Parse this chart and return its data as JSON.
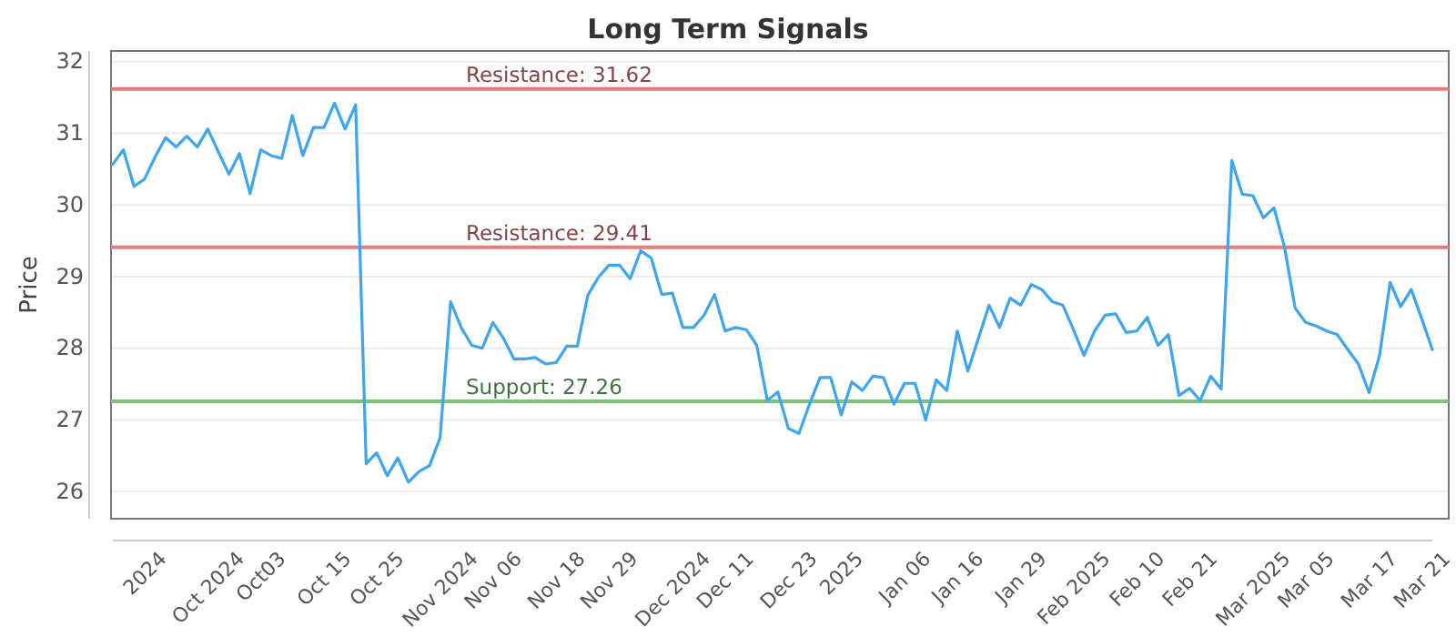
{
  "chart_data": {
    "type": "line",
    "title": "Long Term Signals",
    "ylabel": "Price",
    "categories": [
      null,
      null,
      null,
      "2024",
      null,
      null,
      null,
      null,
      null,
      "Oct 2024",
      null,
      null,
      null,
      null,
      "Oct03",
      null,
      null,
      null,
      null,
      null,
      "Oct 15",
      null,
      null,
      null,
      null,
      "Oct 25",
      null,
      null,
      null,
      null,
      null,
      "Nov 2024",
      null,
      null,
      null,
      null,
      "Nov 06",
      null,
      null,
      null,
      null,
      null,
      "Nov 18",
      null,
      null,
      null,
      null,
      "Nov 29",
      null,
      null,
      null,
      null,
      null,
      "Dec 2024",
      null,
      null,
      null,
      null,
      "Dec 11",
      null,
      null,
      null,
      null,
      null,
      "Dec 23",
      null,
      null,
      null,
      null,
      "2025",
      null,
      null,
      null,
      null,
      null,
      "Jan 06",
      null,
      null,
      null,
      null,
      "Jan 16",
      null,
      null,
      null,
      null,
      null,
      "Jan 29",
      null,
      null,
      null,
      null,
      "Feb 2025",
      null,
      null,
      null,
      null,
      null,
      "Feb 10",
      null,
      null,
      null,
      null,
      "Feb 21",
      null,
      null,
      null,
      null,
      null,
      "Mar 2025",
      null,
      null,
      null,
      null,
      "Mar 05",
      null,
      null,
      null,
      null,
      null,
      "Mar 17",
      null,
      null,
      null,
      null,
      "Mar 21",
      null
    ],
    "series": [
      {
        "color": "#3ea5ee",
        "values": [
          30.57,
          30.77,
          30.26,
          30.36,
          30.67,
          30.94,
          30.81,
          30.96,
          30.81,
          31.06,
          30.74,
          30.43,
          30.72,
          30.16,
          30.77,
          30.69,
          30.65,
          31.25,
          30.69,
          31.08,
          31.08,
          31.42,
          31.06,
          31.4,
          26.39,
          26.54,
          26.22,
          26.47,
          26.13,
          26.28,
          26.36,
          26.75,
          28.65,
          28.29,
          28.04,
          28.0,
          28.36,
          28.14,
          27.85,
          27.85,
          27.87,
          27.78,
          27.8,
          28.03,
          28.03,
          28.74,
          28.99,
          29.16,
          29.16,
          28.97,
          29.36,
          29.26,
          28.75,
          28.77,
          28.29,
          28.29,
          28.46,
          28.75,
          28.24,
          28.29,
          28.26,
          28.04,
          27.27,
          27.39,
          26.88,
          26.81,
          27.22,
          27.59,
          27.59,
          27.07,
          27.53,
          27.41,
          27.61,
          27.59,
          27.22,
          27.51,
          27.51,
          27.0,
          27.56,
          27.41,
          28.24,
          27.68,
          28.14,
          28.6,
          28.29,
          28.7,
          28.6,
          28.89,
          28.82,
          28.65,
          28.6,
          28.26,
          27.9,
          28.24,
          28.46,
          28.48,
          28.22,
          28.24,
          28.43,
          28.04,
          28.19,
          27.34,
          27.44,
          27.27,
          27.61,
          27.43,
          30.62,
          30.15,
          30.13,
          29.82,
          29.96,
          29.41,
          28.56,
          28.36,
          28.31,
          28.24,
          28.19,
          27.98,
          27.78,
          27.38,
          27.9,
          28.92,
          28.58,
          28.82,
          28.41,
          27.98
        ]
      }
    ],
    "ylim": [
      25.62,
      32.15
    ],
    "yticks": [
      26,
      27,
      28,
      29,
      30,
      31,
      32
    ],
    "grid": "y",
    "marker": "none",
    "line_style": "solid",
    "ref_lines": [
      {
        "axis": "y",
        "value": 31.62,
        "label": "Resistance: 31.62",
        "color": "#e57a7a"
      },
      {
        "axis": "y",
        "value": 29.41,
        "label": "Resistance: 29.41",
        "color": "#e57a7a"
      },
      {
        "axis": "y",
        "value": 27.26,
        "label": "Support: 27.26",
        "color": "#7cc47c"
      }
    ]
  }
}
